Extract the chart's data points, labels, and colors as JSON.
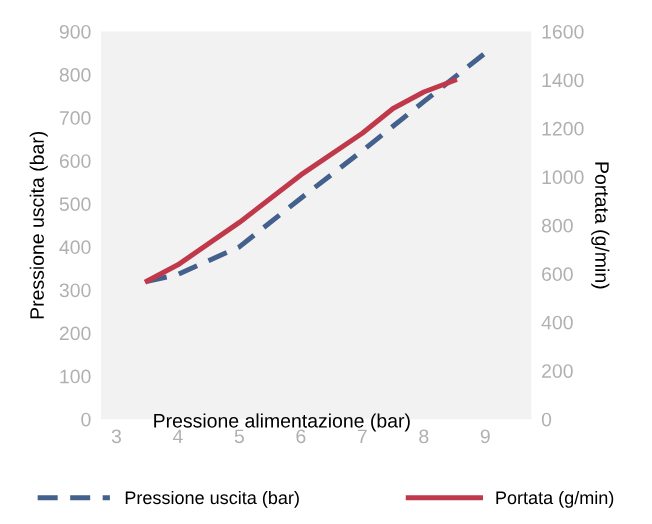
{
  "chart_data": {
    "type": "line",
    "xlabel": "Pressione alimentazione (bar)",
    "ylabel": "Pressione uscita (bar)",
    "y2label": "Portata (g/min)",
    "xlim": [
      2.75,
      9.75
    ],
    "xticks": [
      3,
      4,
      5,
      6,
      7,
      8,
      9
    ],
    "ylim": [
      0,
      900
    ],
    "yticks": [
      0,
      100,
      200,
      300,
      400,
      500,
      600,
      700,
      800,
      900
    ],
    "y2lim": [
      0,
      1600
    ],
    "y2ticks": [
      0,
      200,
      400,
      600,
      800,
      1000,
      1200,
      1400,
      1600
    ],
    "grid": false,
    "legend": "bottom",
    "series": [
      {
        "name": "Pressione uscita (bar)",
        "color": "#44608c",
        "line_style": "dashed",
        "x": [
          3.5,
          4,
          5,
          6,
          7,
          8,
          9
        ],
        "values": [
          320,
          336,
          400,
          513,
          623,
          737,
          850
        ]
      },
      {
        "name": "Portata (g/min)",
        "color": "#c0394b",
        "line_style": "solid",
        "axis": "y2",
        "x": [
          3.5,
          4,
          5,
          6,
          7,
          7.5,
          8,
          8.5
        ],
        "values": [
          570,
          637,
          812,
          1008,
          1180,
          1282,
          1350,
          1398
        ]
      }
    ]
  }
}
